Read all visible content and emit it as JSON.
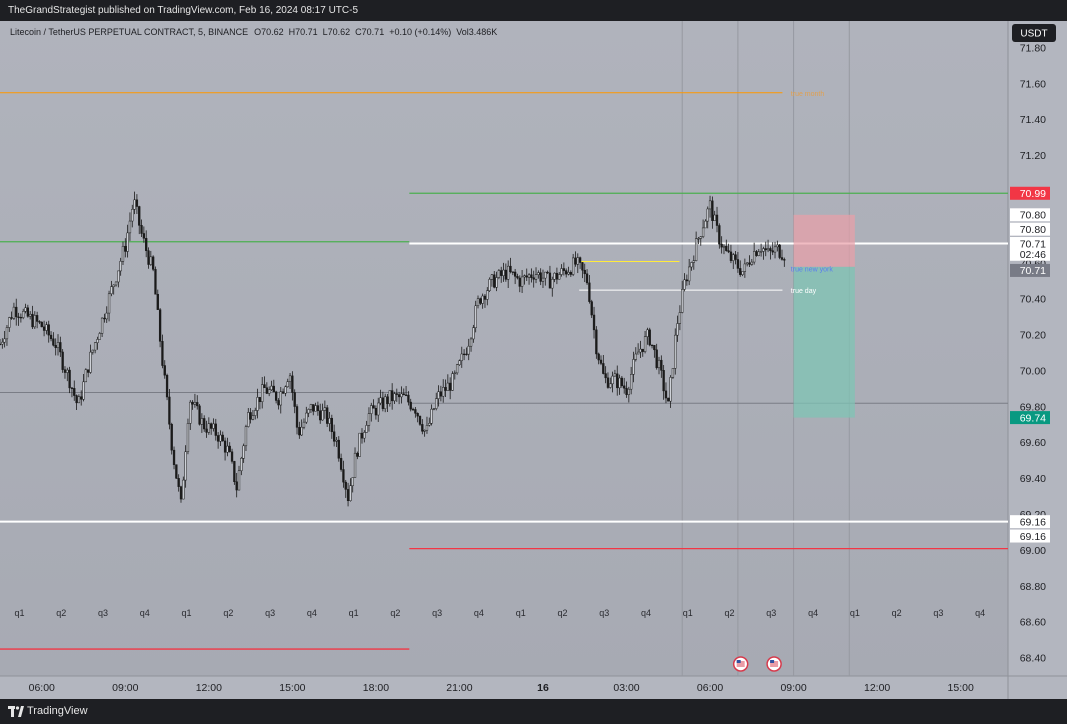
{
  "header": {
    "published_text": "TheGrandStrategist published on TradingView.com, Feb 16, 2024 08:17 UTC-5"
  },
  "footer": {
    "brand": "TradingView"
  },
  "colors": {
    "background": "#b3b6bf",
    "up_candle": "#1a1a1a",
    "down_candle": "#1a1a1a",
    "green_level": "#4caf50",
    "red_level": "#f23645",
    "white_level": "#ffffff",
    "gray_level": "#7a7d86",
    "orange_level": "#ff9800",
    "yellow_level": "#ffeb3b",
    "stop_zone": "#e9a0a8",
    "target_zone": "#7fc4b4",
    "axis_panel": "#b8bbc3",
    "tag_red": "#f23645",
    "tag_teal": "#089981",
    "tag_gray": "#787b86"
  },
  "chart_data": {
    "type": "candlestick",
    "title": "Litecoin / TetherUS PERPETUAL CONTRACT, 5, BINANCE",
    "ohlc_legend": {
      "open": "O70.62",
      "high": "H70.71",
      "low": "L70.62",
      "close": "C70.71",
      "change": "+0.10 (+0.14%)",
      "volume": "Vol3.486K"
    },
    "currency": "USDT",
    "interval_minutes": 5,
    "ylim": [
      68.3,
      71.95
    ],
    "y_ticks": [
      68.4,
      68.6,
      68.8,
      69.0,
      69.2,
      69.4,
      69.6,
      69.8,
      70.0,
      70.2,
      70.4,
      70.6,
      70.8,
      71.0,
      71.2,
      71.4,
      71.6,
      71.8
    ],
    "y_tick_labels": [
      "68.40",
      "68.60",
      "68.80",
      "69.00",
      "69.20",
      "69.40",
      "69.60",
      "69.80",
      "70.00",
      "70.20",
      "70.40",
      "70.60",
      "70.80",
      "71.00",
      "71.20",
      "71.40",
      "71.60",
      "71.80"
    ],
    "x_range_hours": [
      4.5,
      16.7
    ],
    "x_ticks_hours": [
      6,
      9,
      12,
      15,
      18,
      21,
      24,
      27,
      30,
      33,
      36,
      39
    ],
    "x_tick_labels": [
      "06:00",
      "09:00",
      "12:00",
      "15:00",
      "18:00",
      "21:00",
      "16",
      "03:00",
      "06:00",
      "09:00",
      "12:00",
      "15:00"
    ],
    "quarter_labels": [
      "q1",
      "q2",
      "q3",
      "q4",
      "q1",
      "q2",
      "q3",
      "q4",
      "q1",
      "q2",
      "q3",
      "q4",
      "q1",
      "q2",
      "q3",
      "q4",
      "q1",
      "q2",
      "q3",
      "q4",
      "q1",
      "q2",
      "q3",
      "q4"
    ],
    "quarter_positions_hours": [
      5.2,
      6.7,
      8.2,
      9.7,
      11.2,
      12.7,
      14.2,
      15.7,
      17.2,
      18.7,
      20.2,
      21.7,
      23.2,
      24.7,
      26.2,
      27.7,
      29.2,
      30.7,
      32.2,
      33.7,
      35.2,
      36.7,
      38.2,
      39.7
    ],
    "price_path": [
      [
        4.5,
        70.15
      ],
      [
        5.0,
        70.35
      ],
      [
        5.5,
        70.3
      ],
      [
        6.0,
        70.25
      ],
      [
        6.5,
        70.15
      ],
      [
        7.0,
        69.95
      ],
      [
        7.3,
        69.8
      ],
      [
        7.7,
        70.05
      ],
      [
        8.2,
        70.3
      ],
      [
        8.7,
        70.55
      ],
      [
        9.0,
        70.7
      ],
      [
        9.3,
        70.95
      ],
      [
        9.6,
        70.75
      ],
      [
        10.0,
        70.55
      ],
      [
        10.3,
        70.1
      ],
      [
        10.7,
        69.55
      ],
      [
        11.0,
        69.25
      ],
      [
        11.3,
        69.85
      ],
      [
        11.8,
        69.7
      ],
      [
        12.3,
        69.65
      ],
      [
        12.7,
        69.55
      ],
      [
        13.0,
        69.35
      ],
      [
        13.4,
        69.75
      ],
      [
        14.0,
        69.9
      ],
      [
        14.5,
        69.85
      ],
      [
        14.9,
        70.0
      ],
      [
        15.2,
        69.65
      ],
      [
        15.7,
        69.8
      ],
      [
        16.2,
        69.75
      ],
      [
        16.6,
        69.6
      ],
      [
        17.0,
        69.3
      ],
      [
        17.3,
        69.55
      ],
      [
        17.7,
        69.75
      ],
      [
        18.1,
        69.8
      ],
      [
        18.5,
        69.85
      ],
      [
        19.0,
        69.85
      ],
      [
        19.4,
        69.8
      ],
      [
        19.8,
        69.65
      ],
      [
        20.2,
        69.85
      ],
      [
        20.8,
        69.95
      ],
      [
        21.3,
        70.15
      ],
      [
        21.7,
        70.4
      ],
      [
        22.2,
        70.5
      ],
      [
        22.7,
        70.55
      ],
      [
        23.2,
        70.5
      ],
      [
        23.7,
        70.55
      ],
      [
        24.2,
        70.5
      ],
      [
        24.7,
        70.55
      ],
      [
        25.2,
        70.6
      ],
      [
        25.6,
        70.5
      ],
      [
        25.9,
        70.15
      ],
      [
        26.2,
        69.95
      ],
      [
        26.6,
        69.95
      ],
      [
        27.0,
        69.9
      ],
      [
        27.4,
        70.1
      ],
      [
        27.8,
        70.2
      ],
      [
        28.2,
        70.0
      ],
      [
        28.5,
        69.8
      ],
      [
        28.8,
        70.25
      ],
      [
        29.1,
        70.5
      ],
      [
        29.4,
        70.65
      ],
      [
        29.7,
        70.8
      ],
      [
        30.0,
        70.92
      ],
      [
        30.3,
        70.75
      ],
      [
        30.6,
        70.65
      ],
      [
        30.9,
        70.6
      ],
      [
        31.2,
        70.55
      ],
      [
        31.5,
        70.65
      ],
      [
        31.8,
        70.7
      ],
      [
        32.1,
        70.65
      ],
      [
        32.4,
        70.68
      ],
      [
        32.7,
        70.65
      ]
    ],
    "price_tags": [
      {
        "label": "70.99",
        "price": 70.99,
        "style": "red"
      },
      {
        "label": "70.80",
        "price": 70.87,
        "style": "white"
      },
      {
        "label": "70.80",
        "price": 70.79,
        "style": "white"
      },
      {
        "label": "70.71",
        "price": 70.71,
        "style": "white"
      },
      {
        "label": "02:46",
        "price": 70.65,
        "style": "white"
      },
      {
        "label": "70.71",
        "price": 70.56,
        "style": "gray"
      },
      {
        "label": "69.74",
        "price": 69.74,
        "style": "teal"
      },
      {
        "label": "69.16",
        "price": 69.16,
        "style": "white"
      },
      {
        "label": "69.16",
        "price": 69.08,
        "style": "white"
      }
    ],
    "levels": [
      {
        "name": "green-upper",
        "price": 70.99,
        "x_from": 19.2,
        "color_key": "green_level"
      },
      {
        "name": "green-prev",
        "price": 70.72,
        "x_from": 4.5,
        "x_to": 19.2,
        "color_key": "green_level"
      },
      {
        "name": "white-upper",
        "price": 70.71,
        "x_from": 19.2,
        "color_key": "white_level"
      },
      {
        "name": "white-lower",
        "price": 69.16,
        "x_from": 4.5,
        "color_key": "white_level"
      },
      {
        "name": "red-lower",
        "price": 69.01,
        "x_from": 19.2,
        "color_key": "red_level"
      },
      {
        "name": "red-prev",
        "price": 68.45,
        "x_from": 4.5,
        "x_to": 19.2,
        "color_key": "red_level"
      },
      {
        "name": "gray-mid",
        "price": 69.88,
        "x_from": 4.5,
        "x_to": 19.2,
        "color_key": "gray_level"
      },
      {
        "name": "gray-mid-2",
        "price": 69.82,
        "x_from": 19.2,
        "color_key": "gray_level"
      },
      {
        "name": "orange-top",
        "price": 71.55,
        "x_from": 4.5,
        "x_to": 32.6,
        "color_key": "orange_level"
      },
      {
        "name": "yellow-short",
        "price": 70.61,
        "x_from": 25.3,
        "x_to": 28.9,
        "color_key": "yellow_level"
      },
      {
        "name": "true-day",
        "price": 70.45,
        "x_from": 25.3,
        "x_to": 32.6,
        "color_key": "white_level"
      }
    ],
    "level_labels": [
      {
        "text": "true new york",
        "price": 70.57,
        "x": 32.9,
        "color": "#5b7cf0"
      },
      {
        "text": "true day",
        "price": 70.45,
        "x": 32.9,
        "color": "#ffffff"
      },
      {
        "text": "true month",
        "price": 71.55,
        "x": 32.9,
        "color": "#e0a050"
      }
    ],
    "position_box": {
      "x_from": 33.0,
      "x_to": 35.2,
      "entry": 70.58,
      "stop": 70.87,
      "target": 69.74
    },
    "session_lines_hours": [
      29.0,
      31.0,
      33.0,
      35.0
    ],
    "event_icons_hours": [
      31.1,
      32.3
    ],
    "currency_label": "USDT"
  }
}
